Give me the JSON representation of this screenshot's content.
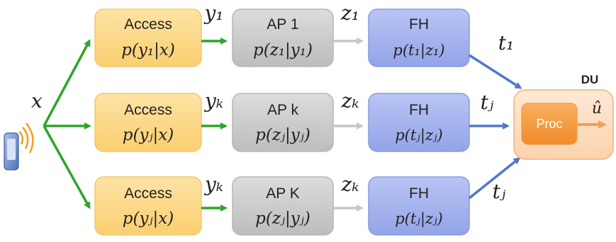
{
  "source": {
    "symbol": "x"
  },
  "rows": [
    {
      "access": {
        "title": "Access",
        "dist": "p(y₁|x)"
      },
      "y_label": "y₁",
      "ap": {
        "title": "AP 1",
        "dist": "p(z₁|y₁)"
      },
      "z_label": "z₁",
      "fh": {
        "title": "FH",
        "dist": "p(t₁|z₁)"
      },
      "t_label": "t₁"
    },
    {
      "access": {
        "title": "Access",
        "dist": "p(yⱼ|x)"
      },
      "y_label": "yₖ",
      "ap": {
        "title": "AP k",
        "dist": "p(zⱼ|yⱼ)"
      },
      "z_label": "zₖ",
      "fh": {
        "title": "FH",
        "dist": "p(tⱼ|zⱼ)"
      },
      "t_label": "tⱼ"
    },
    {
      "access": {
        "title": "Access",
        "dist": "p(yⱼ|x)"
      },
      "y_label": "yₖ",
      "ap": {
        "title": "AP K",
        "dist": "p(zⱼ|yⱼ)"
      },
      "z_label": "zₖ",
      "fh": {
        "title": "FH",
        "dist": "p(tⱼ|zⱼ)"
      },
      "t_label": "tⱼ"
    }
  ],
  "du": {
    "title": "DU",
    "proc_label": "Proc",
    "output": "û"
  },
  "colors": {
    "access": "#fcd98a",
    "ap": "#cfcfcf",
    "fh": "#a6b4ef",
    "du": "#fde2c8",
    "proc": "#f59a3c",
    "green_arrow": "#2ea52a",
    "blue_arrow": "#4f78c8",
    "gray_arrow": "#c6c6c6"
  },
  "icons": {
    "device": "mobile-phone-icon",
    "signal": "wireless-signal-icon"
  }
}
